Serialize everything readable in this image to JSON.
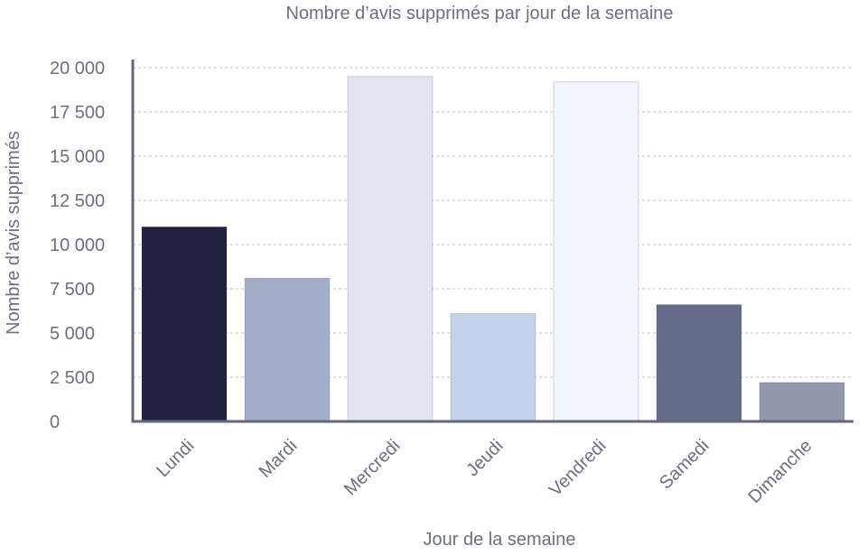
{
  "chart_data": {
    "type": "bar",
    "title": "Nombre d’avis supprimés par jour de la semaine",
    "xlabel": "Jour de la semaine",
    "ylabel": "Nombre d’avis supprimés",
    "categories": [
      "Lundi",
      "Mardi",
      "Mercredi",
      "Jeudi",
      "Vendredi",
      "Samedi",
      "Dimanche"
    ],
    "values": [
      11000,
      8100,
      19500,
      6100,
      19200,
      6600,
      2200
    ],
    "ylim": [
      0,
      20000
    ],
    "yticks": [
      0,
      2500,
      5000,
      7500,
      10000,
      12500,
      15000,
      17500,
      20000
    ],
    "ytick_labels": [
      "0",
      "2 500",
      "5 000",
      "7 500",
      "10 000",
      "12 500",
      "15 000",
      "17 500",
      "20 000"
    ],
    "grid": true,
    "colors": [
      "#1f2340",
      "#a3adc8",
      "#e2e4f0",
      "#c3d0ea",
      "#f1f5fd",
      "#656c89",
      "#9198ab"
    ],
    "axis_color": "#62667f",
    "text_color": "#6b6f85"
  }
}
